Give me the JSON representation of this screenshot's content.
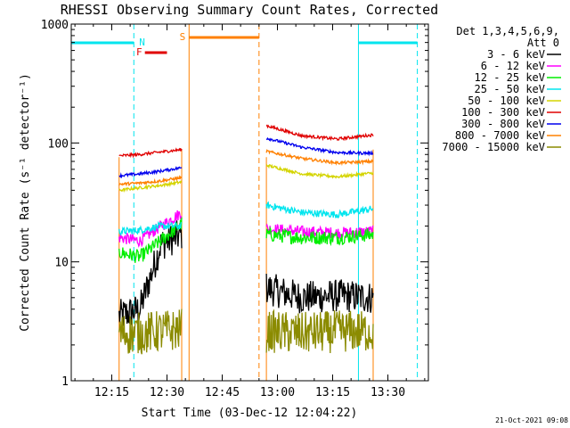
{
  "chart_data": {
    "type": "line",
    "title": "RHESSI Observing Summary Count Rates, Corrected",
    "xlabel": "Start Time (03-Dec-12 12:04:22)",
    "ylabel": "Corrected Count Rate (s⁻¹ detector⁻¹)",
    "yscale": "log",
    "xlim": [
      "12:04",
      "13:41"
    ],
    "ylim": [
      1,
      1000
    ],
    "x_ticks": [
      "12:15",
      "12:30",
      "12:45",
      "13:00",
      "13:15",
      "13:30"
    ],
    "y_ticks": [
      "1",
      "10",
      "100",
      "1000"
    ],
    "grid": false,
    "legend_placement": "right",
    "legend_header": [
      "Det 1,3,4,5,6,9,",
      "Att 0"
    ],
    "timestamp": "21-Oct-2021 09:08",
    "flags": {
      "night_label": "N",
      "flare_label": "F",
      "saa_label": "S",
      "night_color": "#00e5ee",
      "flare_color": "#e00000",
      "saa_color": "#ff8000",
      "night_intervals": [
        [
          "12:04",
          "12:21"
        ],
        [
          "13:22",
          "13:38"
        ]
      ],
      "flare_interval": [
        "12:24",
        "12:30"
      ],
      "saa_interval": [
        "12:36",
        "12:55"
      ]
    },
    "segments": [
      [
        "12:17",
        "12:34"
      ],
      [
        "12:57",
        "13:26"
      ]
    ],
    "series": [
      {
        "name": "3 - 6 keV",
        "color": "#000000",
        "values": [
          [
            3.5,
            4.0,
            14.0,
            17.0
          ],
          [
            6.0,
            5.0,
            5.2,
            5.0
          ]
        ],
        "noise": 0.14
      },
      {
        "name": "6 - 12 keV",
        "color": "#ff00ff",
        "values": [
          [
            16.0,
            15.0,
            20.0,
            26.0
          ],
          [
            19.0,
            18.0,
            17.5,
            18.0
          ]
        ],
        "noise": 0.05
      },
      {
        "name": "12 - 25 keV",
        "color": "#00ee00",
        "values": [
          [
            12.0,
            11.0,
            15.0,
            21.0
          ],
          [
            17.0,
            16.0,
            16.0,
            17.0
          ]
        ],
        "noise": 0.06
      },
      {
        "name": "25 - 50 keV",
        "color": "#00e5ee",
        "values": [
          [
            18.0,
            18.5,
            20.0,
            20.0
          ],
          [
            30.0,
            26.0,
            25.0,
            28.0
          ]
        ],
        "noise": 0.03
      },
      {
        "name": "50 - 100 keV",
        "color": "#d4d400",
        "values": [
          [
            40.0,
            42.0,
            44.0,
            47.0
          ],
          [
            65.0,
            55.0,
            52.0,
            56.0
          ]
        ],
        "noise": 0.012
      },
      {
        "name": "100 - 300 keV",
        "color": "#e00000",
        "values": [
          [
            78.0,
            80.0,
            84.0,
            88.0
          ],
          [
            140.0,
            115.0,
            108.0,
            117.0
          ]
        ],
        "noise": 0.012
      },
      {
        "name": "300 - 800 keV",
        "color": "#0000ee",
        "values": [
          [
            53.0,
            55.0,
            58.0,
            62.0
          ],
          [
            110.0,
            92.0,
            83.0,
            82.0
          ]
        ],
        "noise": 0.012
      },
      {
        "name": "800 - 7000 keV",
        "color": "#ff8000",
        "values": [
          [
            45.0,
            46.0,
            48.0,
            51.0
          ],
          [
            85.0,
            74.0,
            68.0,
            70.0
          ]
        ],
        "noise": 0.012
      },
      {
        "name": "7000 - 15000 keV",
        "color": "#8b8b00",
        "values": [
          [
            2.5,
            2.5,
            2.6,
            2.7
          ],
          [
            2.6,
            2.5,
            2.6,
            2.6
          ]
        ],
        "noise": 0.18
      }
    ]
  }
}
